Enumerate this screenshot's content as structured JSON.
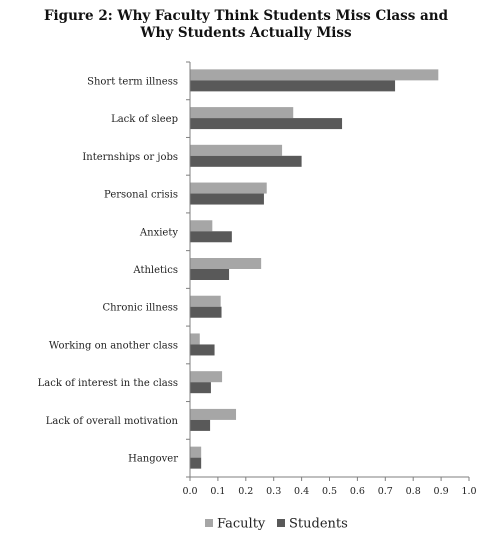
{
  "chart_data": {
    "type": "bar",
    "orientation": "horizontal",
    "title_line1": "Figure 2: Why Faculty Think Students Miss Class and",
    "title_line2": "Why Students Actually Miss",
    "categories": [
      "Short term illness",
      "Lack of sleep",
      "Internships or jobs",
      "Personal crisis",
      "Anxiety",
      "Athletics",
      "Chronic illness",
      "Working on another class",
      "Lack of interest in the class",
      "Lack of overall motivation",
      "Hangover"
    ],
    "series": [
      {
        "name": "Faculty",
        "color": "#a6a6a6",
        "values": [
          0.89,
          0.37,
          0.33,
          0.275,
          0.08,
          0.255,
          0.11,
          0.035,
          0.115,
          0.165,
          0.04
        ]
      },
      {
        "name": "Students",
        "color": "#595959",
        "values": [
          0.735,
          0.545,
          0.4,
          0.265,
          0.15,
          0.14,
          0.113,
          0.088,
          0.075,
          0.072,
          0.04
        ]
      }
    ],
    "xlim": [
      0,
      1.0
    ],
    "xticks": [
      "0.0",
      "0.1",
      "0.2",
      "0.3",
      "0.4",
      "0.5",
      "0.6",
      "0.7",
      "0.8",
      "0.9",
      "1.0"
    ],
    "grid": false,
    "legend_position": "bottom"
  }
}
